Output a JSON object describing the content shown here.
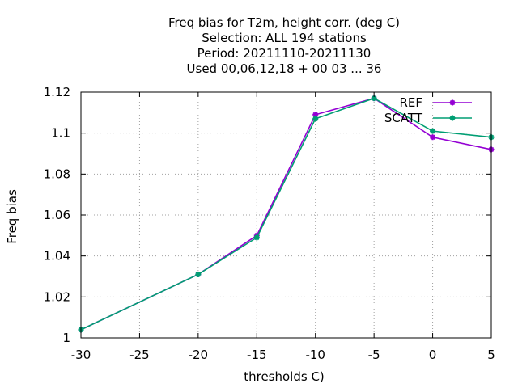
{
  "chart_data": {
    "type": "line",
    "title_lines": [
      "Freq bias  for T2m, height corr. (deg C)",
      "Selection: ALL    194 stations",
      "Period: 20211110-20211130",
      "Used  00,06,12,18 + 00 03 ... 36"
    ],
    "xlabel": "thresholds C)",
    "ylabel": "Freq bias",
    "xlim": [
      -30,
      5
    ],
    "ylim": [
      1.0,
      1.12
    ],
    "xticks": [
      -30,
      -25,
      -20,
      -15,
      -10,
      -5,
      0,
      5
    ],
    "xtick_labels": [
      "-30",
      "-25",
      "-20",
      "-15",
      "-10",
      "-5",
      "0",
      "5"
    ],
    "yticks": [
      1.0,
      1.02,
      1.04,
      1.06,
      1.08,
      1.1,
      1.12
    ],
    "ytick_labels": [
      "1",
      "1.02",
      "1.04",
      "1.06",
      "1.08",
      "1.1",
      "1.12"
    ],
    "grid": true,
    "legend_position": "top-right",
    "series": [
      {
        "name": "REF",
        "color": "#9400d3",
        "x": [
          -30,
          -20,
          -15,
          -10,
          -5,
          0,
          5
        ],
        "y": [
          1.004,
          1.031,
          1.05,
          1.109,
          1.117,
          1.098,
          1.092
        ]
      },
      {
        "name": "SCATT",
        "color": "#009e73",
        "x": [
          -30,
          -20,
          -15,
          -10,
          -5,
          0,
          5
        ],
        "y": [
          1.004,
          1.031,
          1.049,
          1.107,
          1.117,
          1.101,
          1.098
        ]
      }
    ]
  }
}
